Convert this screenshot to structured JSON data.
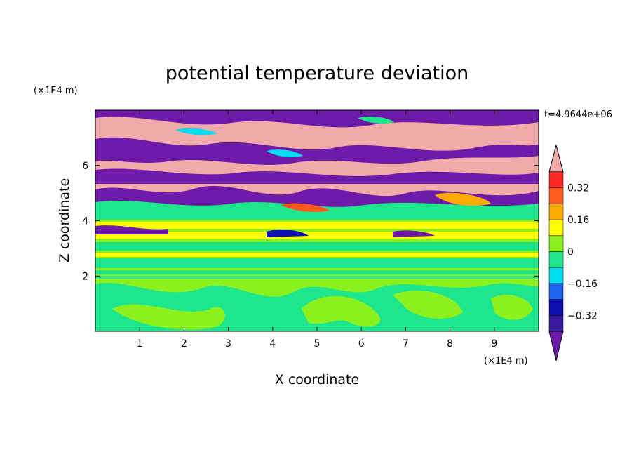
{
  "chart_data": {
    "type": "heatmap",
    "title": "potential temperature deviation",
    "xlabel": "X coordinate",
    "ylabel": "Z coordinate",
    "x_unit": "(×1E4 m)",
    "y_unit": "(×1E4 m)",
    "time_label": "t=4.9644e+06",
    "xlim": [
      0,
      10
    ],
    "ylim": [
      0,
      8
    ],
    "x_ticks": [
      "1",
      "2",
      "3",
      "4",
      "5",
      "6",
      "7",
      "8",
      "9"
    ],
    "y_ticks": [
      "2",
      "4",
      "6"
    ],
    "colorbar_ticks": [
      "0.32",
      "0.16",
      "0",
      "−0.16",
      "−0.32"
    ],
    "colorbar_levels": [
      -0.4,
      -0.32,
      -0.24,
      -0.16,
      -0.08,
      0,
      0.08,
      0.16,
      0.24,
      0.32,
      0.4
    ],
    "colorbar_colors": [
      "#6e1aa8",
      "#3a1aa0",
      "#0f0fb4",
      "#1e64f0",
      "#00dcf0",
      "#1ee68c",
      "#8cf01e",
      "#ffff00",
      "#ffaa00",
      "#ff5a1e",
      "#ff2828",
      "#f0aaaa"
    ],
    "layers": [
      {
        "z_range": [
          0,
          2
        ],
        "description": "mostly 0 to +0.08 with 0 to -0.08 swirls"
      },
      {
        "z_range": [
          2,
          4
        ],
        "description": "banded near-zero with yellow stripes"
      },
      {
        "z_range": [
          4,
          5.3
        ],
        "description": "turbulent mixed values"
      },
      {
        "z_range": [
          5.3,
          8
        ],
        "description": "alternating pink (>0.4) and purple (<-0.4) bands"
      }
    ]
  }
}
